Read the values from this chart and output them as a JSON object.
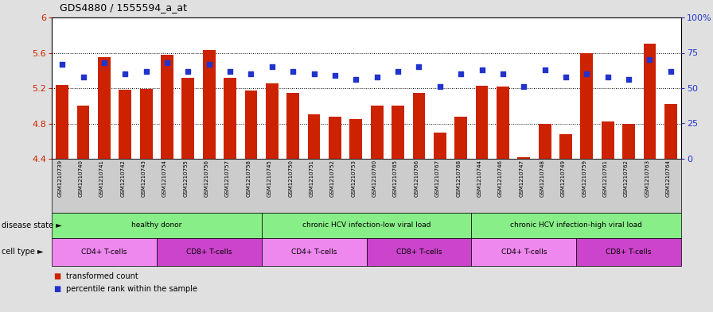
{
  "title": "GDS4880 / 1555594_a_at",
  "samples": [
    "GSM1210739",
    "GSM1210740",
    "GSM1210741",
    "GSM1210742",
    "GSM1210743",
    "GSM1210754",
    "GSM1210755",
    "GSM1210756",
    "GSM1210757",
    "GSM1210758",
    "GSM1210745",
    "GSM1210750",
    "GSM1210751",
    "GSM1210752",
    "GSM1210753",
    "GSM1210760",
    "GSM1210765",
    "GSM1210766",
    "GSM1210767",
    "GSM1210768",
    "GSM1210744",
    "GSM1210746",
    "GSM1210747",
    "GSM1210748",
    "GSM1210749",
    "GSM1210759",
    "GSM1210761",
    "GSM1210762",
    "GSM1210763",
    "GSM1210764"
  ],
  "bar_values": [
    5.24,
    5.0,
    5.55,
    5.18,
    5.19,
    5.58,
    5.32,
    5.63,
    5.32,
    5.17,
    5.25,
    5.15,
    4.9,
    4.88,
    4.85,
    5.0,
    5.0,
    5.15,
    4.7,
    4.88,
    5.23,
    5.22,
    4.42,
    4.8,
    4.68,
    5.6,
    4.82,
    4.8,
    5.7,
    5.02
  ],
  "percentile_values": [
    67,
    58,
    68,
    60,
    62,
    68,
    62,
    67,
    62,
    60,
    65,
    62,
    60,
    59,
    56,
    58,
    62,
    65,
    51,
    60,
    63,
    60,
    51,
    63,
    58,
    60,
    58,
    56,
    70,
    62
  ],
  "ylim_left": [
    4.4,
    6.0
  ],
  "ylim_right": [
    0,
    100
  ],
  "yticks_left": [
    4.4,
    4.8,
    5.2,
    5.6,
    6.0
  ],
  "ytick_labels_left": [
    "4.4",
    "4.8",
    "5.2",
    "5.6",
    "6"
  ],
  "yticks_right": [
    0,
    25,
    50,
    75,
    100
  ],
  "ytick_labels_right": [
    "0",
    "25",
    "50",
    "75",
    "100%"
  ],
  "bar_color": "#cc2200",
  "dot_color": "#2233cc",
  "bar_width": 0.6,
  "disease_groups": [
    {
      "label": "healthy donor",
      "start": 0,
      "end": 9
    },
    {
      "label": "chronic HCV infection-low viral load",
      "start": 10,
      "end": 19
    },
    {
      "label": "chronic HCV infection-high viral load",
      "start": 20,
      "end": 29
    }
  ],
  "disease_color": "#88ee88",
  "cell_type_groups": [
    {
      "label": "CD4+ T-cells",
      "start": 0,
      "end": 4,
      "color": "#ee88ee"
    },
    {
      "label": "CD8+ T-cells",
      "start": 5,
      "end": 9,
      "color": "#cc44cc"
    },
    {
      "label": "CD4+ T-cells",
      "start": 10,
      "end": 14,
      "color": "#ee88ee"
    },
    {
      "label": "CD8+ T-cells",
      "start": 15,
      "end": 19,
      "color": "#cc44cc"
    },
    {
      "label": "CD4+ T-cells",
      "start": 20,
      "end": 24,
      "color": "#ee88ee"
    },
    {
      "label": "CD8+ T-cells",
      "start": 25,
      "end": 29,
      "color": "#cc44cc"
    }
  ],
  "disease_state_label": "disease state ►",
  "cell_type_label": "cell type ►",
  "legend_bar_label": "transformed count",
  "legend_dot_label": "percentile rank within the sample",
  "fig_bg_color": "#e0e0e0",
  "plot_bg_color": "#ffffff",
  "tick_color_left": "#cc2200",
  "tick_color_right": "#2233cc",
  "sample_label_bg": "#cccccc"
}
